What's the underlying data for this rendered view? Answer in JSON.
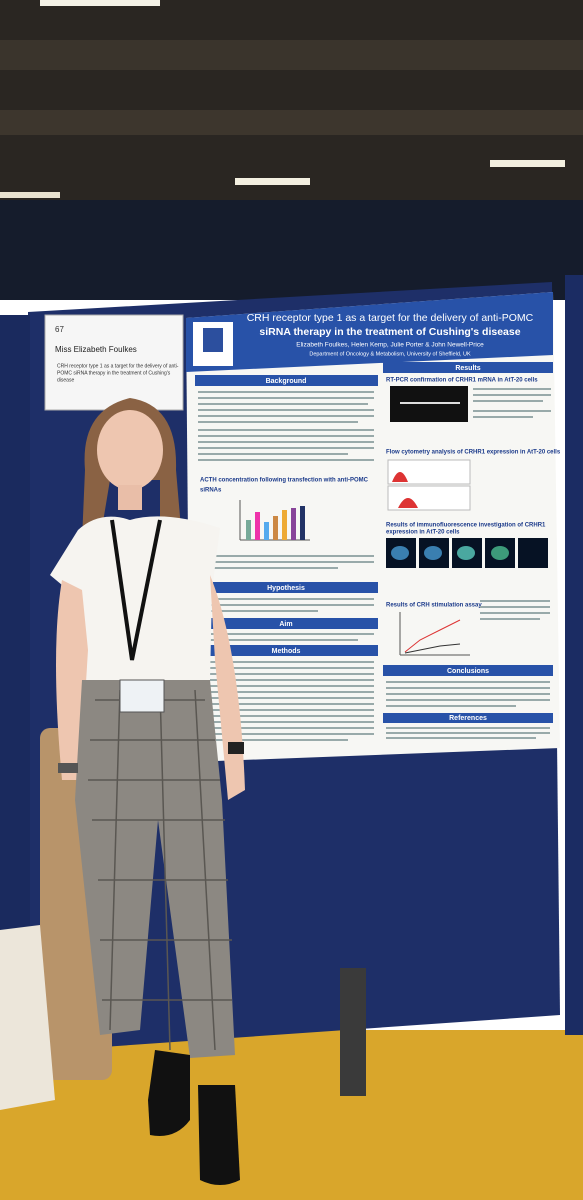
{
  "name_card": {
    "number": "67",
    "name": "Miss Elizabeth Foulkes",
    "title_lines": [
      "CRH receptor type 1 as a target for the delivery of anti-",
      "POMC siRNA therapy in the treatment of Cushing's",
      "disease"
    ]
  },
  "poster": {
    "title_lines": [
      "CRH receptor type 1 as a target for the delivery of anti-POMC",
      "siRNA therapy in the treatment of Cushing's disease"
    ],
    "authors": "Elizabeth Foulkes, Helen Kemp, Julie Porter & John Newell-Price",
    "affiliation": "Department of Oncology & Metabolism, University of Sheffield, UK",
    "sections": {
      "background": "Background",
      "acth": "ACTH concentration following transfection with anti-POMC",
      "sirnas": "siRNAs",
      "hypothesis": "Hypothesis",
      "aim": "Aim",
      "methods": "Methods",
      "results": "Results",
      "rtpcr": "RT-PCR confirmation of CRHR1 mRNA in AtT-20 cells",
      "flow": "Flow cytometry analysis of CRHR1 expression in AtT-20 cells",
      "immuno": "Results of immunofluorescence investigation of CRHR1",
      "immuno2": "expression in AtT-20 cells",
      "crh": "Results of CRH stimulation assay",
      "conclusions": "Conclusions",
      "references": "References"
    }
  }
}
